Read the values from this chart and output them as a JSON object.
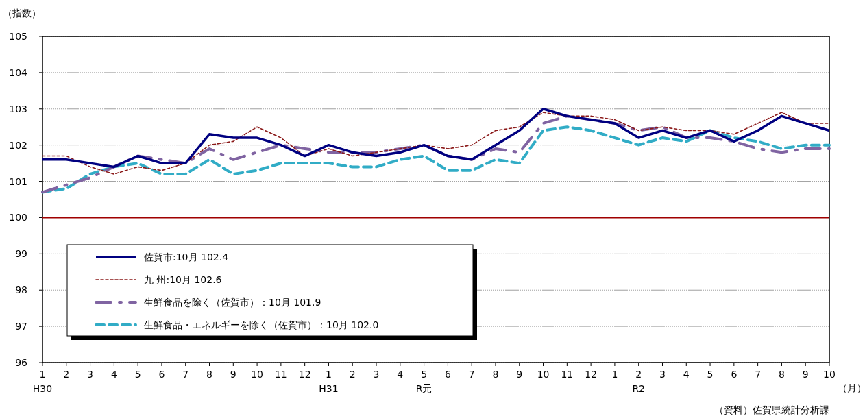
{
  "chart_data": {
    "type": "line",
    "ylabel": "（指数）",
    "xlabel": "（月）",
    "categories": [
      "1\nH30",
      "2",
      "3",
      "4",
      "5",
      "6",
      "7",
      "8",
      "9",
      "10",
      "11",
      "12",
      "1\nH31",
      "2",
      "3",
      "4",
      "5\nR元",
      "6",
      "7",
      "8",
      "9",
      "10",
      "11",
      "12",
      "1",
      "2\nR2",
      "3",
      "4",
      "5",
      "6",
      "7",
      "8",
      "9",
      "10"
    ],
    "series": [
      {
        "name": "佐賀市:10月 102.4",
        "color": "#000080",
        "line_style": "solid",
        "values": [
          101.6,
          101.6,
          101.5,
          101.4,
          101.7,
          101.5,
          101.5,
          102.3,
          102.2,
          102.2,
          102.0,
          101.7,
          102.0,
          101.8,
          101.7,
          101.8,
          102.0,
          101.7,
          101.6,
          102.0,
          102.4,
          103.0,
          102.8,
          102.7,
          102.6,
          102.2,
          102.4,
          102.2,
          102.4,
          102.1,
          102.4,
          102.8,
          102.6,
          102.4
        ]
      },
      {
        "name": "九 州:10月 102.6",
        "color": "#8b1a1a",
        "line_style": "dotted",
        "values": [
          101.7,
          101.7,
          101.4,
          101.2,
          101.4,
          101.3,
          101.5,
          102.0,
          102.1,
          102.5,
          102.2,
          101.7,
          101.9,
          101.7,
          101.8,
          101.9,
          102.0,
          101.9,
          102.0,
          102.4,
          102.5,
          102.9,
          102.8,
          102.8,
          102.7,
          102.4,
          102.5,
          102.4,
          102.4,
          102.3,
          102.6,
          102.9,
          102.6,
          102.6
        ]
      },
      {
        "name": "生鮮食品を除く（佐賀市）：10月 101.9",
        "color": "#8064a2",
        "line_style": "dashdot",
        "values": [
          100.7,
          100.9,
          101.1,
          101.4,
          101.7,
          101.6,
          101.5,
          101.9,
          101.6,
          101.8,
          102.0,
          101.9,
          101.8,
          101.8,
          101.8,
          101.9,
          102.0,
          101.7,
          101.6,
          101.9,
          101.8,
          102.6,
          102.8,
          102.7,
          102.6,
          102.4,
          102.5,
          102.2,
          102.2,
          102.1,
          101.9,
          101.8,
          101.9,
          101.9
        ]
      },
      {
        "name": "生鮮食品・エネルギーを除く（佐賀市）：10月 102.0",
        "color": "#31acc6",
        "line_style": "dashed",
        "values": [
          100.7,
          100.8,
          101.2,
          101.4,
          101.5,
          101.2,
          101.2,
          101.6,
          101.2,
          101.3,
          101.5,
          101.5,
          101.5,
          101.4,
          101.4,
          101.6,
          101.7,
          101.3,
          101.3,
          101.6,
          101.5,
          102.4,
          102.5,
          102.4,
          102.2,
          102.0,
          102.2,
          102.1,
          102.4,
          102.2,
          102.1,
          101.9,
          102.0,
          102.0
        ]
      }
    ],
    "ylim": [
      96,
      105
    ],
    "yticks": [
      96,
      97,
      98,
      99,
      100,
      101,
      102,
      103,
      104,
      105
    ],
    "grid": "y",
    "legend": "bottom left",
    "marker": "none",
    "ref_lines": [
      {
        "axis": "y",
        "value": 100,
        "color": "#a00000"
      }
    ],
    "annotations": [
      "（資料）佐賀県統計分析課"
    ]
  }
}
